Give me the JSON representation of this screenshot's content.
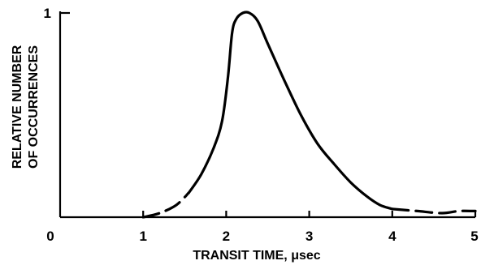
{
  "chart_data": {
    "type": "line",
    "title": "",
    "xlabel": "TRANSIT TIME, μsec",
    "ylabel_lines": [
      "RELATIVE NUMBER",
      "OF OCCURRENCES"
    ],
    "xlim": [
      0,
      5
    ],
    "ylim": [
      0,
      1
    ],
    "x_ticks": [
      "0",
      "1",
      "2",
      "3",
      "4",
      "5"
    ],
    "y_ticks": [
      "1"
    ],
    "grid": false,
    "legend": "none",
    "series": [
      {
        "style": "dashed",
        "points": [
          [
            1.0,
            0.0
          ],
          [
            1.2,
            0.02
          ],
          [
            1.4,
            0.06
          ],
          [
            1.55,
            0.12
          ]
        ]
      },
      {
        "style": "solid",
        "points": [
          [
            1.55,
            0.12
          ],
          [
            1.7,
            0.21
          ],
          [
            1.85,
            0.34
          ],
          [
            1.95,
            0.47
          ],
          [
            2.02,
            0.68
          ],
          [
            2.07,
            0.9
          ],
          [
            2.12,
            0.97
          ],
          [
            2.2,
            1.0
          ],
          [
            2.28,
            1.0
          ],
          [
            2.38,
            0.96
          ],
          [
            2.5,
            0.85
          ],
          [
            2.7,
            0.67
          ],
          [
            2.9,
            0.5
          ],
          [
            3.1,
            0.36
          ],
          [
            3.3,
            0.26
          ],
          [
            3.5,
            0.17
          ],
          [
            3.7,
            0.1
          ],
          [
            3.85,
            0.06
          ],
          [
            4.0,
            0.04
          ]
        ]
      },
      {
        "style": "dashed",
        "points": [
          [
            4.0,
            0.04
          ],
          [
            4.3,
            0.03
          ],
          [
            4.6,
            0.02
          ],
          [
            4.8,
            0.03
          ],
          [
            5.0,
            0.03
          ]
        ]
      }
    ]
  }
}
